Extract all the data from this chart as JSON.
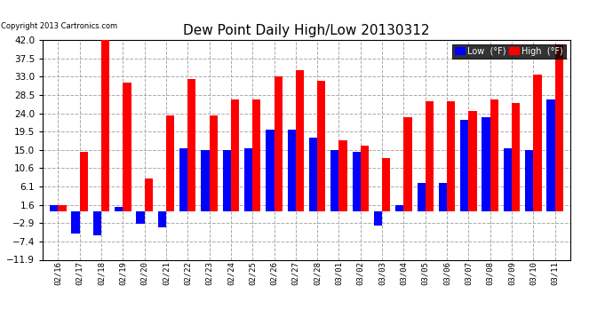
{
  "title": "Dew Point Daily High/Low 20130312",
  "copyright": "Copyright 2013 Cartronics.com",
  "categories": [
    "02/16",
    "02/17",
    "02/18",
    "02/19",
    "02/20",
    "02/21",
    "02/22",
    "02/23",
    "02/24",
    "02/25",
    "02/26",
    "02/27",
    "02/28",
    "03/01",
    "03/02",
    "03/03",
    "03/04",
    "03/05",
    "03/06",
    "03/07",
    "03/08",
    "03/09",
    "03/10",
    "03/11"
  ],
  "low": [
    1.6,
    -5.5,
    -6.0,
    1.0,
    -3.0,
    -4.0,
    15.5,
    15.0,
    15.0,
    15.5,
    20.0,
    20.0,
    18.0,
    15.0,
    14.5,
    -3.5,
    1.5,
    7.0,
    7.0,
    22.5,
    23.0,
    15.5,
    15.0,
    27.5
  ],
  "high": [
    1.6,
    14.5,
    42.0,
    31.5,
    8.0,
    23.5,
    32.5,
    23.5,
    27.5,
    27.5,
    33.0,
    34.5,
    32.0,
    17.5,
    16.0,
    13.0,
    23.0,
    27.0,
    27.0,
    24.5,
    27.5,
    26.5,
    33.5,
    41.0
  ],
  "ylim": [
    -11.9,
    42.0
  ],
  "yticks": [
    42.0,
    37.5,
    33.0,
    28.5,
    24.0,
    19.5,
    15.0,
    10.6,
    6.1,
    1.6,
    -2.9,
    -7.4,
    -11.9
  ],
  "bar_color_low": "#0000ff",
  "bar_color_high": "#ff0000",
  "bg_color": "#ffffff",
  "grid_color": "#aaaaaa",
  "title_color": "#000000"
}
